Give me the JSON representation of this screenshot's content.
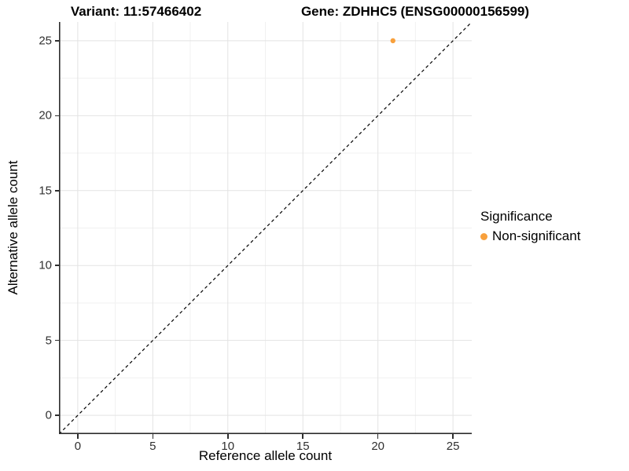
{
  "titles": {
    "variant": "Variant: 11:57466402",
    "gene": "Gene: ZDHHC5 (ENSG00000156599)"
  },
  "chart_data": {
    "type": "scatter",
    "points": [
      {
        "x": 21,
        "y": 25,
        "series": "Non-significant"
      }
    ],
    "xlabel": "Reference allele count",
    "ylabel": "Alternative allele count",
    "xlim": [
      -1.25,
      26.25
    ],
    "ylim": [
      -1.25,
      26.25
    ],
    "xticks": [
      0,
      5,
      10,
      15,
      20,
      25
    ],
    "yticks": [
      0,
      5,
      10,
      15,
      20,
      25
    ],
    "xminor": [
      2.5,
      7.5,
      12.5,
      17.5,
      22.5
    ],
    "yminor": [
      2.5,
      7.5,
      12.5,
      17.5,
      22.5
    ],
    "grid": "major+minor on white background",
    "reference_line": {
      "type": "identity y=x",
      "style": "dashed",
      "color": "#000000"
    },
    "legend": {
      "title": "Significance",
      "position": "right",
      "entries": [
        {
          "label": "Non-significant",
          "color": "#F8A03C"
        }
      ]
    }
  },
  "colors": {
    "point": "#F8A03C",
    "grid_major": "#E3E3E3",
    "grid_minor": "#F1F1F1",
    "axis": "#2E2E2E",
    "identity_line": "#000000",
    "background": "#FFFFFF"
  }
}
